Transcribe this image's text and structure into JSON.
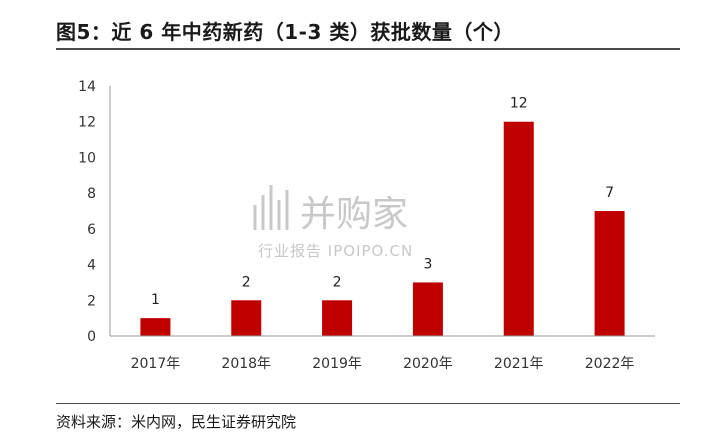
{
  "title": "图5：近 6 年中药新药（1-3 类）获批数量（个）",
  "source": "资料来源：米内网，民生证券研究院",
  "watermark": {
    "main": "并购家",
    "sub": "行业报告 IPOIPO.CN"
  },
  "colors": {
    "bar": "#c00000",
    "axis": "#9a9a9a",
    "rule": "#4a4a4a"
  },
  "chart_data": {
    "type": "bar",
    "categories": [
      "2017年",
      "2018年",
      "2019年",
      "2020年",
      "2021年",
      "2022年"
    ],
    "values": [
      1,
      2,
      2,
      3,
      12,
      7
    ],
    "data_labels": [
      "1",
      "2",
      "2",
      "3",
      "12",
      "7"
    ],
    "ylim": [
      0,
      14
    ],
    "yticks": [
      0,
      2,
      4,
      6,
      8,
      10,
      12,
      14
    ],
    "grid": false,
    "legend": "none"
  }
}
